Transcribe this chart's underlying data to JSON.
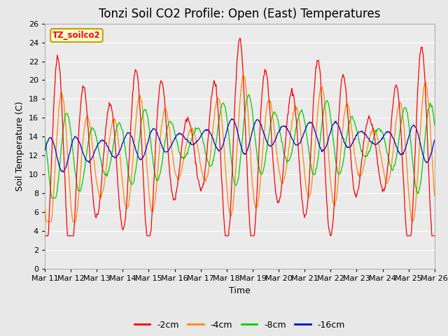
{
  "title": "Tonzi Soil CO2 Profile: Open (East) Temperatures",
  "xlabel": "Time",
  "ylabel": "Soil Temperature (C)",
  "legend_label": "TZ_soilco2",
  "series_labels": [
    "-2cm",
    "-4cm",
    "-8cm",
    "-16cm"
  ],
  "series_colors": [
    "#ff0000",
    "#ff8800",
    "#00cc00",
    "#0000cc"
  ],
  "ylim": [
    0,
    26
  ],
  "yticks": [
    0,
    2,
    4,
    6,
    8,
    10,
    12,
    14,
    16,
    18,
    20,
    22,
    24,
    26
  ],
  "xtick_labels": [
    "Mar 11",
    "Mar 12",
    "Mar 13",
    "Mar 14",
    "Mar 15",
    "Mar 16",
    "Mar 17",
    "Mar 18",
    "Mar 19",
    "Mar 20",
    "Mar 21",
    "Mar 22",
    "Mar 23",
    "Mar 24",
    "Mar 25",
    "Mar 26"
  ],
  "background_color": "#e8e8e8",
  "plot_bg_color": "#ebebeb",
  "title_fontsize": 12,
  "axis_fontsize": 9,
  "tick_fontsize": 8,
  "legend_box_color": "#ffffcc",
  "legend_box_edge": "#cc9900",
  "figsize": [
    6.4,
    4.8
  ],
  "dpi": 100
}
